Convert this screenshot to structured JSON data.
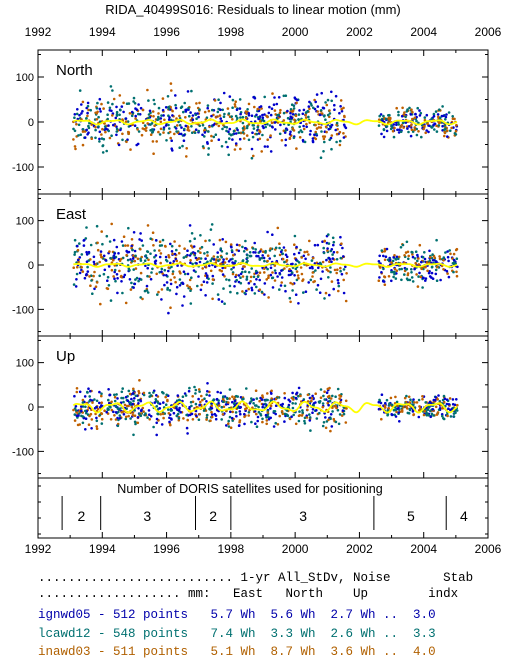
{
  "title": "RIDA_40499S016: Residuals to linear motion (mm)",
  "chart_data": {
    "type": "scatter",
    "xlim": [
      1992,
      2006
    ],
    "x_ticks": [
      1992,
      1994,
      1996,
      1998,
      2000,
      2002,
      2004,
      2006
    ],
    "panels": [
      {
        "name": "North",
        "ylim": [
          -160,
          160
        ],
        "y_ticks": [
          100,
          0,
          -100
        ],
        "scatter_sd": 28,
        "smooth_amp": 4
      },
      {
        "name": "East",
        "ylim": [
          -160,
          160
        ],
        "y_ticks": [
          100,
          0,
          -100
        ],
        "scatter_sd": 35,
        "smooth_amp": 3
      },
      {
        "name": "Up",
        "ylim": [
          -160,
          160
        ],
        "y_ticks": [
          100,
          0,
          -100
        ],
        "scatter_sd": 22,
        "smooth_amp": 9
      }
    ],
    "data_spans": [
      [
        1993.1,
        2001.6
      ],
      [
        2002.6,
        2005.05
      ]
    ],
    "series_colors": [
      "#0000cc",
      "#007070",
      "#c06000"
    ],
    "smooth_color": "#ffff00",
    "satellites": {
      "label": "Number of DORIS satellites used for positioning",
      "boundaries": [
        1992.75,
        1993.95,
        1996.9,
        1998.0,
        2002.45,
        2004.7
      ],
      "segments": [
        {
          "x": 1993.35,
          "count": "2"
        },
        {
          "x": 1995.4,
          "count": "3"
        },
        {
          "x": 1997.45,
          "count": "2"
        },
        {
          "x": 2000.25,
          "count": "3"
        },
        {
          "x": 2003.6,
          "count": "5"
        },
        {
          "x": 2005.25,
          "count": "4"
        }
      ]
    }
  },
  "stats": {
    "header1": ".......................... 1-yr All_StDv, Noise       Stab",
    "header2": "................... mm:   East   North    Up        indx",
    "rows": [
      {
        "text": "ignwd05 - 512 points   5.7 Wh  5.6 Wh  2.7 Wh ..  3.0",
        "color": "#0000aa"
      },
      {
        "text": "lcawd12 - 548 points   7.4 Wh  3.3 Wh  2.6 Wh ..  3.3",
        "color": "#007070"
      },
      {
        "text": "inawd03 - 511 points   5.1 Wh  8.7 Wh  3.6 Wh ..  4.0",
        "color": "#b06000"
      }
    ]
  }
}
